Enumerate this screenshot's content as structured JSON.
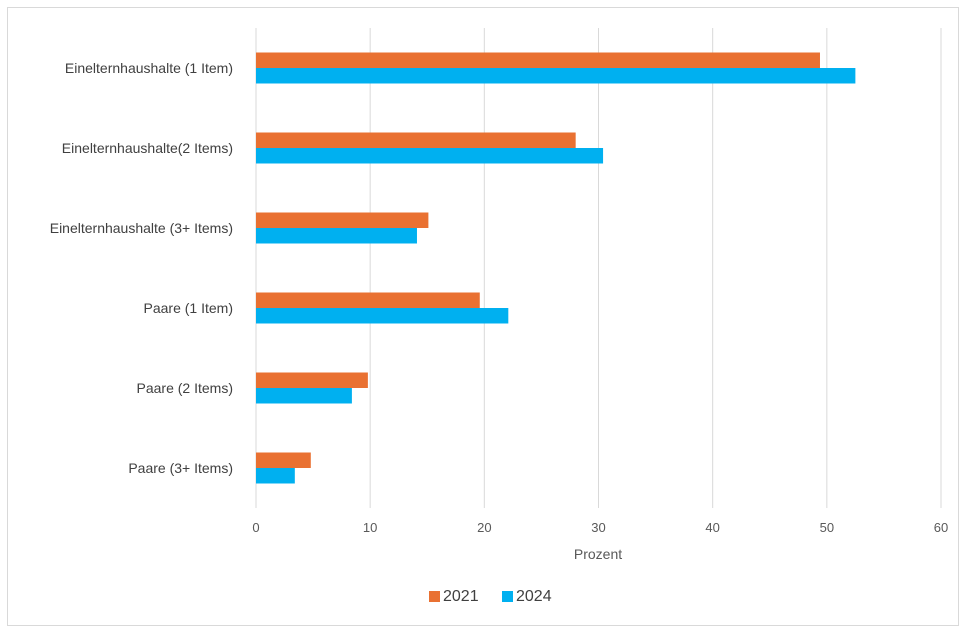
{
  "chart_data": {
    "type": "bar",
    "orientation": "horizontal",
    "categories": [
      "Einelternhaushalte (1 Item)",
      "Einelternhaushalte(2 Items)",
      "Einelternhaushalte (3+ Items)",
      "Paare (1 Item)",
      "Paare (2 Items)",
      "Paare (3+ Items)"
    ],
    "series": [
      {
        "name": "2021",
        "color": "#E97132",
        "values": [
          49.4,
          28.0,
          15.1,
          19.6,
          9.8,
          4.8
        ]
      },
      {
        "name": "2024",
        "color": "#00B0F0",
        "values": [
          52.5,
          30.4,
          14.1,
          22.1,
          8.4,
          3.4
        ]
      }
    ],
    "xlabel": "Prozent",
    "xlim": [
      0,
      60
    ],
    "xticks": [
      "0",
      "10",
      "20",
      "30",
      "40",
      "50",
      "60"
    ],
    "grid": true,
    "legend": "bottom"
  }
}
